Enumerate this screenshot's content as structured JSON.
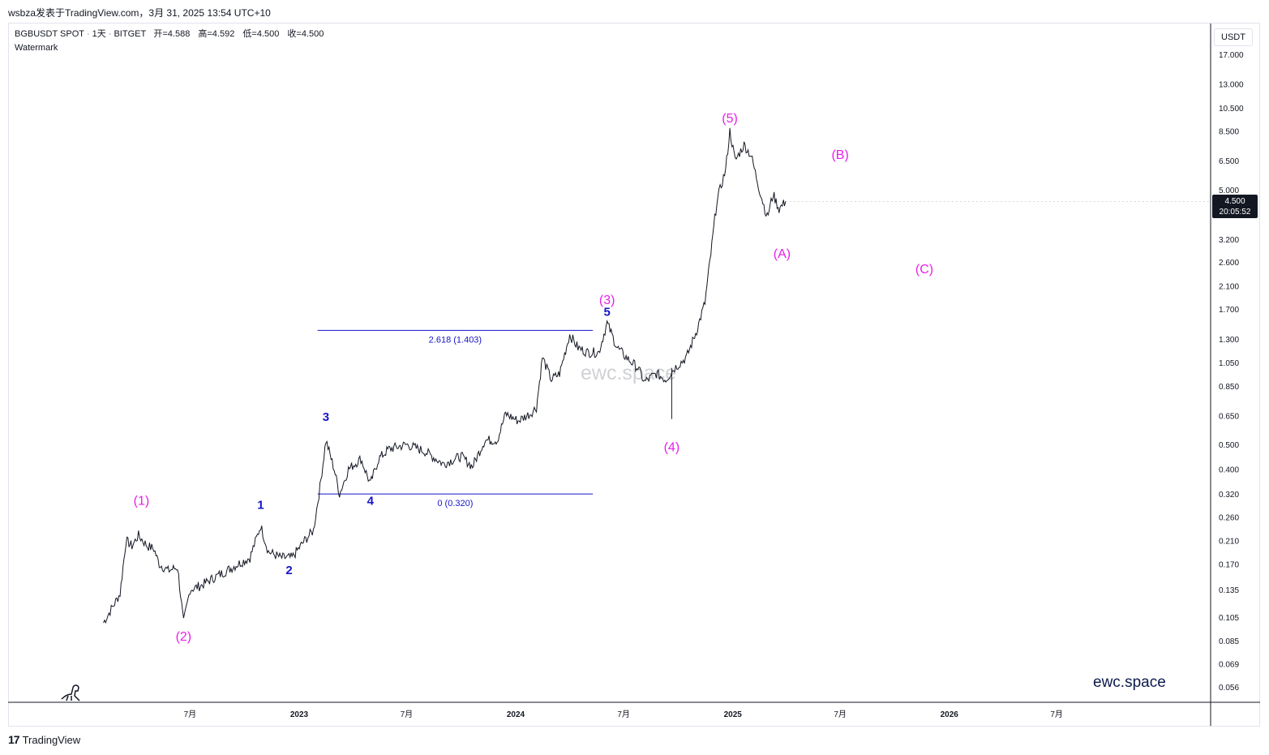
{
  "header": {
    "publisher_line": "wsbza发表于TradingView.com，3月 31, 2025 13:54 UTC+10"
  },
  "legend": {
    "symbol": "BGBUSDT SPOT",
    "interval": "1天",
    "exchange": "BITGET",
    "open_label": "开=4.588",
    "high_label": "高=4.592",
    "low_label": "低=4.500",
    "close_label": "收=4.500",
    "indicator": "Watermark"
  },
  "price_scale": {
    "currency": "USDT",
    "last_price": "4.500",
    "countdown": "20:05:52"
  },
  "footer": {
    "logo": "17",
    "brand": "TradingView"
  },
  "watermark": {
    "center_text": "ewc.space",
    "corner_text": "ewc.space"
  },
  "colors": {
    "candle": "#131722",
    "wave_major": "#e91ee9",
    "wave_minor": "#1515c8",
    "fib_line": "#1515c8"
  },
  "chart_data": {
    "type": "line",
    "title": "",
    "xlabel": "",
    "ylabel": "",
    "y_scale": "log",
    "ylim": [
      0.05,
      20
    ],
    "xlim": [
      "2022-01",
      "2026-12"
    ],
    "x_ticks": [
      {
        "date": "2022-07",
        "label": "7月"
      },
      {
        "date": "2023-01",
        "label": "2023"
      },
      {
        "date": "2023-07",
        "label": "7月"
      },
      {
        "date": "2024-01",
        "label": "2024"
      },
      {
        "date": "2024-07",
        "label": "7月"
      },
      {
        "date": "2025-01",
        "label": "2025"
      },
      {
        "date": "2025-07",
        "label": "7月"
      },
      {
        "date": "2026-01",
        "label": "2026"
      },
      {
        "date": "2026-07",
        "label": "7月"
      }
    ],
    "y_ticks": [
      "17.000",
      "13.000",
      "10.500",
      "8.500",
      "6.500",
      "5.000",
      "3.200",
      "2.600",
      "2.100",
      "1.700",
      "1.300",
      "1.050",
      "0.850",
      "0.650",
      "0.500",
      "0.400",
      "0.320",
      "0.260",
      "0.210",
      "0.170",
      "0.135",
      "0.105",
      "0.085",
      "0.069",
      "0.056"
    ],
    "series": [
      {
        "values": [
          {
            "x": "2022-02-05",
            "y": 0.1
          },
          {
            "x": "2022-02-20",
            "y": 0.115
          },
          {
            "x": "2022-03-05",
            "y": 0.13
          },
          {
            "x": "2022-03-15",
            "y": 0.21
          },
          {
            "x": "2022-03-25",
            "y": 0.2
          },
          {
            "x": "2022-04-05",
            "y": 0.22
          },
          {
            "x": "2022-04-20",
            "y": 0.2
          },
          {
            "x": "2022-05-01",
            "y": 0.195
          },
          {
            "x": "2022-05-10",
            "y": 0.17
          },
          {
            "x": "2022-05-25",
            "y": 0.16
          },
          {
            "x": "2022-06-10",
            "y": 0.165
          },
          {
            "x": "2022-06-20",
            "y": 0.1
          },
          {
            "x": "2022-07-01",
            "y": 0.135
          },
          {
            "x": "2022-07-20",
            "y": 0.14
          },
          {
            "x": "2022-08-10",
            "y": 0.15
          },
          {
            "x": "2022-09-01",
            "y": 0.16
          },
          {
            "x": "2022-09-20",
            "y": 0.17
          },
          {
            "x": "2022-10-10",
            "y": 0.18
          },
          {
            "x": "2022-10-28",
            "y": 0.24
          },
          {
            "x": "2022-11-10",
            "y": 0.19
          },
          {
            "x": "2022-12-01",
            "y": 0.18
          },
          {
            "x": "2022-12-20",
            "y": 0.18
          },
          {
            "x": "2023-01-10",
            "y": 0.21
          },
          {
            "x": "2023-01-25",
            "y": 0.23
          },
          {
            "x": "2023-02-05",
            "y": 0.34
          },
          {
            "x": "2023-02-15",
            "y": 0.52
          },
          {
            "x": "2023-03-01",
            "y": 0.4
          },
          {
            "x": "2023-03-10",
            "y": 0.32
          },
          {
            "x": "2023-03-25",
            "y": 0.4
          },
          {
            "x": "2023-04-15",
            "y": 0.44
          },
          {
            "x": "2023-05-01",
            "y": 0.35
          },
          {
            "x": "2023-05-15",
            "y": 0.44
          },
          {
            "x": "2023-06-01",
            "y": 0.48
          },
          {
            "x": "2023-07-01",
            "y": 0.5
          },
          {
            "x": "2023-08-01",
            "y": 0.47
          },
          {
            "x": "2023-09-01",
            "y": 0.42
          },
          {
            "x": "2023-10-01",
            "y": 0.45
          },
          {
            "x": "2023-10-20",
            "y": 0.41
          },
          {
            "x": "2023-11-10",
            "y": 0.52
          },
          {
            "x": "2023-12-01",
            "y": 0.52
          },
          {
            "x": "2023-12-15",
            "y": 0.66
          },
          {
            "x": "2024-01-05",
            "y": 0.62
          },
          {
            "x": "2024-01-25",
            "y": 0.66
          },
          {
            "x": "2024-02-05",
            "y": 0.7
          },
          {
            "x": "2024-02-15",
            "y": 1.1
          },
          {
            "x": "2024-03-01",
            "y": 0.9
          },
          {
            "x": "2024-03-15",
            "y": 0.95
          },
          {
            "x": "2024-04-01",
            "y": 1.35
          },
          {
            "x": "2024-04-15",
            "y": 1.2
          },
          {
            "x": "2024-05-01",
            "y": 1.15
          },
          {
            "x": "2024-05-20",
            "y": 1.15
          },
          {
            "x": "2024-06-03",
            "y": 1.5
          },
          {
            "x": "2024-06-20",
            "y": 1.2
          },
          {
            "x": "2024-07-05",
            "y": 1.1
          },
          {
            "x": "2024-07-25",
            "y": 1.0
          },
          {
            "x": "2024-08-05",
            "y": 0.88
          },
          {
            "x": "2024-08-25",
            "y": 0.95
          },
          {
            "x": "2024-09-10",
            "y": 0.9
          },
          {
            "x": "2024-09-25",
            "y": 1.0
          },
          {
            "x": "2024-10-15",
            "y": 1.1
          },
          {
            "x": "2024-11-01",
            "y": 1.4
          },
          {
            "x": "2024-11-15",
            "y": 1.8
          },
          {
            "x": "2024-11-25",
            "y": 2.8
          },
          {
            "x": "2024-12-05",
            "y": 4.5
          },
          {
            "x": "2024-12-20",
            "y": 6.0
          },
          {
            "x": "2024-12-27",
            "y": 8.5
          },
          {
            "x": "2025-01-05",
            "y": 6.5
          },
          {
            "x": "2025-01-20",
            "y": 7.5
          },
          {
            "x": "2025-02-01",
            "y": 6.8
          },
          {
            "x": "2025-02-15",
            "y": 5.0
          },
          {
            "x": "2025-02-28",
            "y": 3.9
          },
          {
            "x": "2025-03-10",
            "y": 4.8
          },
          {
            "x": "2025-03-20",
            "y": 4.2
          },
          {
            "x": "2025-03-31",
            "y": 4.5
          }
        ]
      }
    ],
    "wicks": [
      {
        "x": "2024-09-20",
        "low": 0.63
      }
    ],
    "fibonacci": [
      {
        "label": "2.618 (1.403)",
        "price": 1.403,
        "x_start": "2023-02-01",
        "x_end": "2024-05-10"
      },
      {
        "label": "0 (0.320)",
        "price": 0.32,
        "x_start": "2023-02-01",
        "x_end": "2024-05-10"
      }
    ],
    "wave_labels": [
      {
        "text": "(1)",
        "x": "2022-04-10",
        "price": 0.29,
        "group": "major"
      },
      {
        "text": "(2)",
        "x": "2022-06-20",
        "price": 0.085,
        "group": "major"
      },
      {
        "text": "1",
        "x": "2022-10-28",
        "price": 0.28,
        "group": "minor"
      },
      {
        "text": "2",
        "x": "2022-12-15",
        "price": 0.155,
        "group": "minor"
      },
      {
        "text": "3",
        "x": "2023-02-15",
        "price": 0.62,
        "group": "minor"
      },
      {
        "text": "4",
        "x": "2023-05-01",
        "price": 0.29,
        "group": "minor"
      },
      {
        "text": "(3)",
        "x": "2024-06-03",
        "price": 1.78,
        "group": "major"
      },
      {
        "text": "5",
        "x": "2024-06-03",
        "price": 1.6,
        "group": "minor"
      },
      {
        "text": "(4)",
        "x": "2024-09-20",
        "price": 0.47,
        "group": "major"
      },
      {
        "text": "(5)",
        "x": "2024-12-27",
        "price": 9.2,
        "group": "major"
      },
      {
        "text": "(A)",
        "x": "2025-03-25",
        "price": 2.7,
        "group": "major"
      },
      {
        "text": "(B)",
        "x": "2025-07-01",
        "price": 6.6,
        "group": "major"
      },
      {
        "text": "(C)",
        "x": "2025-11-20",
        "price": 2.35,
        "group": "major"
      }
    ]
  }
}
